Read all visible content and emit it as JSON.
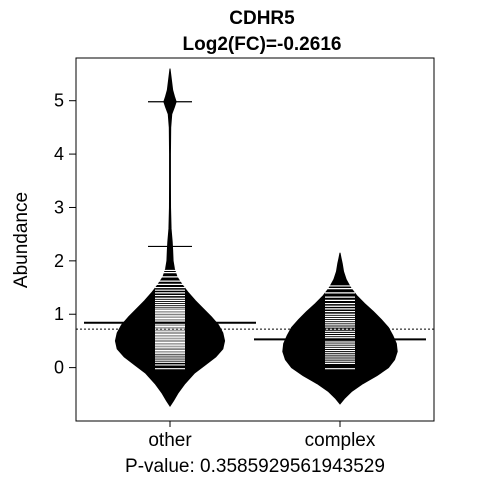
{
  "chart_data": {
    "type": "bean",
    "title": "CDHR5",
    "subtitle": "Log2(FC)=-0.2616",
    "ylabel": "Abundance",
    "xlabel": "P-value: 0.3585929561943529",
    "categories": [
      "other",
      "complex"
    ],
    "ylim": [
      -1.0,
      5.8
    ],
    "yticks": [
      0,
      1,
      2,
      3,
      4,
      5
    ],
    "overall_mean": 0.72,
    "groups": [
      {
        "name": "other",
        "mean": 0.84,
        "range": [
          -0.72,
          5.6
        ],
        "density": [
          [
            -0.72,
            0.0
          ],
          [
            -0.62,
            0.04
          ],
          [
            -0.48,
            0.09
          ],
          [
            -0.3,
            0.17
          ],
          [
            -0.1,
            0.28
          ],
          [
            0.05,
            0.4
          ],
          [
            0.2,
            0.52
          ],
          [
            0.35,
            0.6
          ],
          [
            0.5,
            0.62
          ],
          [
            0.65,
            0.6
          ],
          [
            0.8,
            0.55
          ],
          [
            0.95,
            0.47
          ],
          [
            1.1,
            0.38
          ],
          [
            1.25,
            0.29
          ],
          [
            1.4,
            0.21
          ],
          [
            1.55,
            0.14
          ],
          [
            1.7,
            0.08
          ],
          [
            1.85,
            0.05
          ],
          [
            2.0,
            0.035
          ],
          [
            2.2,
            0.03
          ],
          [
            2.35,
            0.025
          ],
          [
            2.6,
            0.012
          ],
          [
            3.0,
            0.006
          ],
          [
            3.5,
            0.005
          ],
          [
            4.0,
            0.005
          ],
          [
            4.5,
            0.008
          ],
          [
            4.75,
            0.02
          ],
          [
            4.88,
            0.05
          ],
          [
            4.98,
            0.07
          ],
          [
            5.08,
            0.05
          ],
          [
            5.2,
            0.03
          ],
          [
            5.4,
            0.015
          ],
          [
            5.6,
            0.0
          ]
        ],
        "points": [
          -0.02,
          0.05,
          0.1,
          0.14,
          0.18,
          0.22,
          0.26,
          0.29,
          0.32,
          0.35,
          0.38,
          0.41,
          0.44,
          0.47,
          0.5,
          0.53,
          0.56,
          0.59,
          0.62,
          0.65,
          0.68,
          0.71,
          0.74,
          0.77,
          0.8,
          0.83,
          0.86,
          0.89,
          0.92,
          0.95,
          0.98,
          1.01,
          1.04,
          1.07,
          1.1,
          1.14,
          1.18,
          1.22,
          1.26,
          1.3,
          1.35,
          1.4,
          1.45,
          1.5,
          1.56,
          1.62,
          1.7,
          1.78,
          1.82,
          2.27,
          4.98
        ]
      },
      {
        "name": "complex",
        "mean": 0.53,
        "range": [
          -0.68,
          2.15
        ],
        "density": [
          [
            -0.68,
            0.0
          ],
          [
            -0.58,
            0.05
          ],
          [
            -0.45,
            0.13
          ],
          [
            -0.3,
            0.26
          ],
          [
            -0.15,
            0.42
          ],
          [
            0.0,
            0.55
          ],
          [
            0.15,
            0.62
          ],
          [
            0.3,
            0.65
          ],
          [
            0.45,
            0.64
          ],
          [
            0.6,
            0.6
          ],
          [
            0.75,
            0.55
          ],
          [
            0.9,
            0.47
          ],
          [
            1.05,
            0.38
          ],
          [
            1.2,
            0.28
          ],
          [
            1.35,
            0.19
          ],
          [
            1.5,
            0.12
          ],
          [
            1.65,
            0.07
          ],
          [
            1.8,
            0.04
          ],
          [
            1.95,
            0.025
          ],
          [
            2.05,
            0.012
          ],
          [
            2.15,
            0.0
          ]
        ],
        "points": [
          -0.02,
          0.08,
          0.12,
          0.16,
          0.2,
          0.24,
          0.28,
          0.32,
          0.36,
          0.4,
          0.44,
          0.48,
          0.52,
          0.56,
          0.6,
          0.64,
          0.68,
          0.72,
          0.76,
          0.8,
          0.84,
          0.88,
          0.92,
          0.96,
          1.0,
          1.05,
          1.1,
          1.15,
          1.2,
          1.26,
          1.32,
          1.4,
          1.48,
          1.53
        ]
      }
    ]
  }
}
